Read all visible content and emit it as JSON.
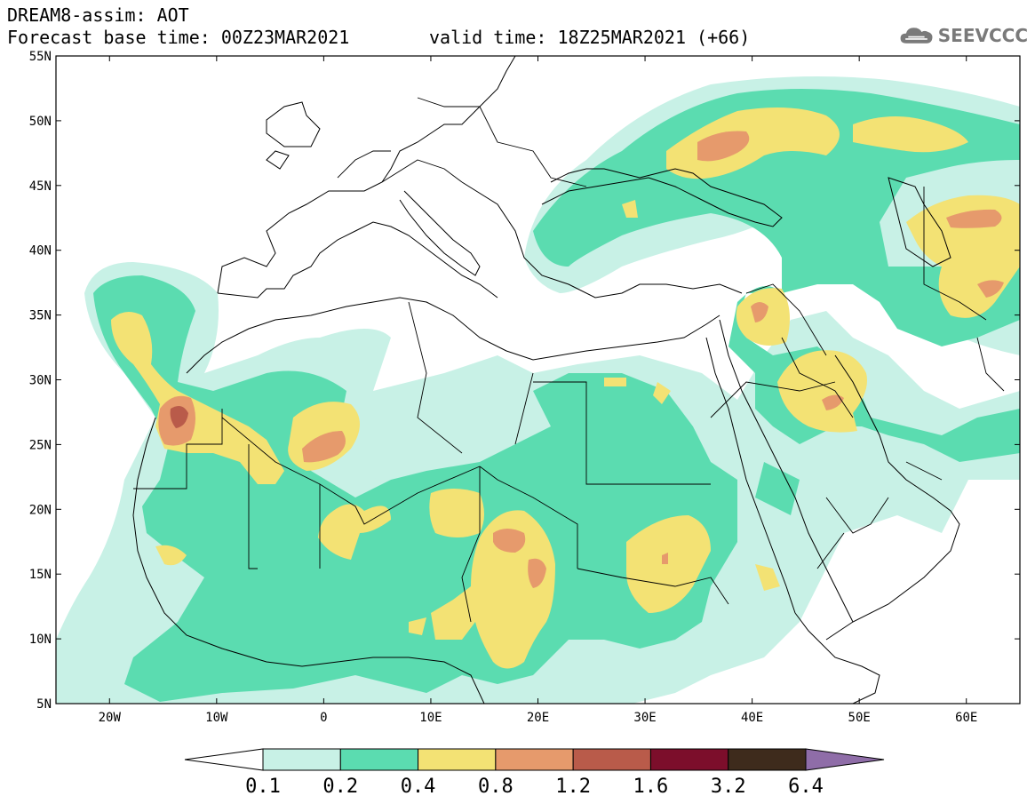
{
  "header": {
    "line1": "DREAM8-assim: AOT",
    "line2": "Forecast base time: 00Z23MAR2021",
    "valid": "valid time: 18Z25MAR2021 (+66)"
  },
  "logo": {
    "text": "SEEVCCC",
    "icon": "cloud-icon"
  },
  "map": {
    "lat_labels": [
      "55N",
      "50N",
      "45N",
      "40N",
      "35N",
      "30N",
      "25N",
      "20N",
      "15N",
      "10N",
      "5N"
    ],
    "lon_labels": [
      "20W",
      "10W",
      "0",
      "10E",
      "20E",
      "30E",
      "40E",
      "50E",
      "60E"
    ],
    "lon_range": [
      -25,
      65
    ],
    "lat_range": [
      5,
      55
    ]
  },
  "colorbar": {
    "labels": [
      "0.1",
      "0.2",
      "0.4",
      "0.8",
      "1.2",
      "1.6",
      "3.2",
      "6.4"
    ],
    "colors": [
      "#ffffff",
      "#c8f1e6",
      "#5bdcb0",
      "#f3e274",
      "#e69a6c",
      "#b95b4a",
      "#7c0e2b",
      "#3e2b1c",
      "#8f6da8"
    ]
  },
  "palette": {
    "c1": "#c8f1e6",
    "c2": "#5bdcb0",
    "c3": "#f3e274",
    "c4": "#e69a6c",
    "c5": "#b95b4a"
  }
}
